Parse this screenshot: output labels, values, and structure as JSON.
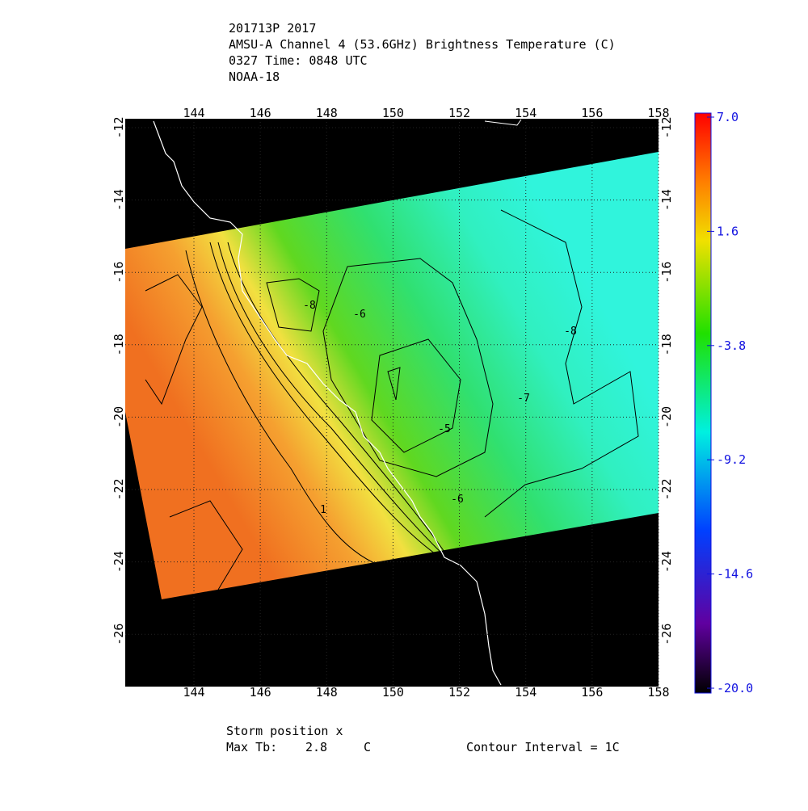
{
  "header": {
    "lines": [
      "201713P 2017",
      "AMSU-A Channel 4 (53.6GHz) Brightness Temperature (C)",
      "0327 Time: 0848 UTC",
      "NOAA-18"
    ]
  },
  "map": {
    "xticks": [
      144,
      146,
      148,
      150,
      152,
      154,
      156,
      158
    ],
    "yticks": [
      -12,
      -14,
      -16,
      -18,
      -20,
      -22,
      -24,
      -26
    ],
    "contour_labels": [
      -8,
      -6,
      -8,
      -7,
      -5,
      -6,
      1
    ]
  },
  "colorbar": {
    "ticks": [
      {
        "value": 7.0,
        "label": "7.0"
      },
      {
        "value": 1.6,
        "label": "1.6"
      },
      {
        "value": -3.8,
        "label": "-3.8"
      },
      {
        "value": -9.2,
        "label": "-9.2"
      },
      {
        "value": -14.6,
        "label": "-14.6"
      },
      {
        "value": -20.0,
        "label": "-20.0"
      }
    ]
  },
  "footer": {
    "storm": "Storm position x",
    "max_label": "Max Tb:",
    "max_value": 2.8,
    "max_unit": "C",
    "interval": "Contour Interval = 1C"
  }
}
